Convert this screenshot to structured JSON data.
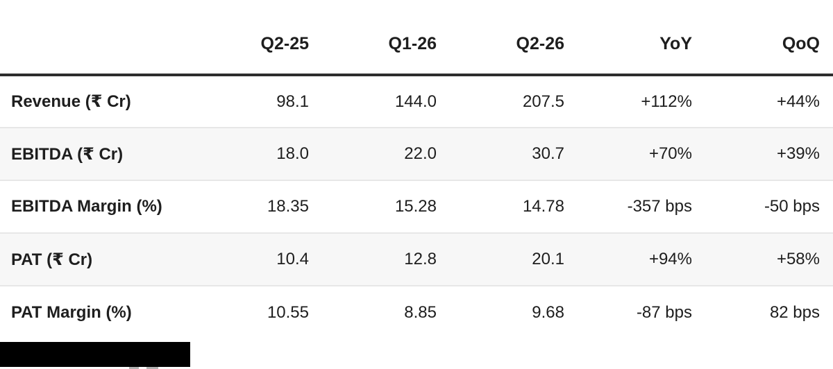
{
  "chart_data": {
    "type": "table",
    "columns": [
      "",
      "Q2-25",
      "Q1-26",
      "Q2-26",
      "YoY",
      "QoQ"
    ],
    "rows": [
      {
        "label": "Revenue (₹ Cr)",
        "values": [
          "98.1",
          "144.0",
          "207.5",
          "+112%",
          "+44%"
        ]
      },
      {
        "label": "EBITDA (₹ Cr)",
        "values": [
          "18.0",
          "22.0",
          "30.7",
          "+70%",
          "+39%"
        ]
      },
      {
        "label": "EBITDA Margin (%)",
        "values": [
          "18.35",
          "15.28",
          "14.78",
          "-357 bps",
          "-50 bps"
        ]
      },
      {
        "label": "PAT (₹ Cr)",
        "values": [
          "10.4",
          "12.8",
          "20.1",
          "+94%",
          "+58%"
        ]
      },
      {
        "label": "PAT Margin (%)",
        "values": [
          "10.55",
          "8.85",
          "9.68",
          "-87 bps",
          "82 bps"
        ]
      }
    ],
    "layout": {
      "numeric_alignment": "right",
      "zebra_rows": [
        1,
        3
      ],
      "grid": "horizontal-only"
    },
    "colors": {
      "text": "#1e1e1e",
      "header_rule": "#2d2d2d",
      "row_divider": "#e7e7e7",
      "row_alt_background": "#f7f7f7",
      "redaction_block": "#000000"
    }
  }
}
